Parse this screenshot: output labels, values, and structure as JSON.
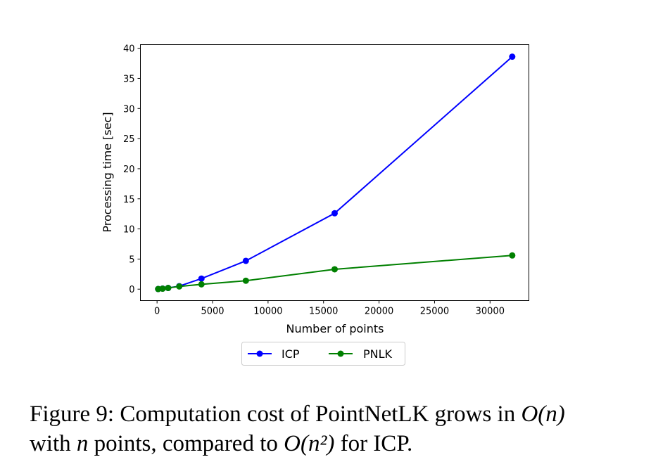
{
  "chart_data": {
    "type": "line",
    "xlabel": "Number of points",
    "ylabel": "Processing time [sec]",
    "xlim": [
      -1500,
      33500
    ],
    "ylim": [
      -1.9,
      40.6
    ],
    "xticks": [
      0,
      5000,
      10000,
      15000,
      20000,
      25000,
      30000
    ],
    "yticks": [
      0,
      5,
      10,
      15,
      20,
      25,
      30,
      35,
      40
    ],
    "grid": false,
    "legend_position": "bottom-center-outside",
    "series": [
      {
        "name": "ICP",
        "color": "#0000ff",
        "x": [
          100,
          500,
          1000,
          2000,
          4000,
          8000,
          16000,
          32000
        ],
        "y": [
          0.02,
          0.1,
          0.2,
          0.5,
          1.75,
          4.7,
          12.6,
          38.6
        ]
      },
      {
        "name": "PNLK",
        "color": "#008000",
        "x": [
          100,
          500,
          1000,
          2000,
          4000,
          8000,
          16000,
          32000
        ],
        "y": [
          0.02,
          0.08,
          0.2,
          0.45,
          0.8,
          1.4,
          3.3,
          5.6
        ]
      }
    ]
  },
  "caption": {
    "prefix": "Figure 9: Computation cost of PointNetLK grows in ",
    "on": "O(n)",
    "line2a": "with ",
    "n": "n",
    "line2b": " points, compared to ",
    "on2": "O(n²)",
    "suffix": " for ICP."
  }
}
